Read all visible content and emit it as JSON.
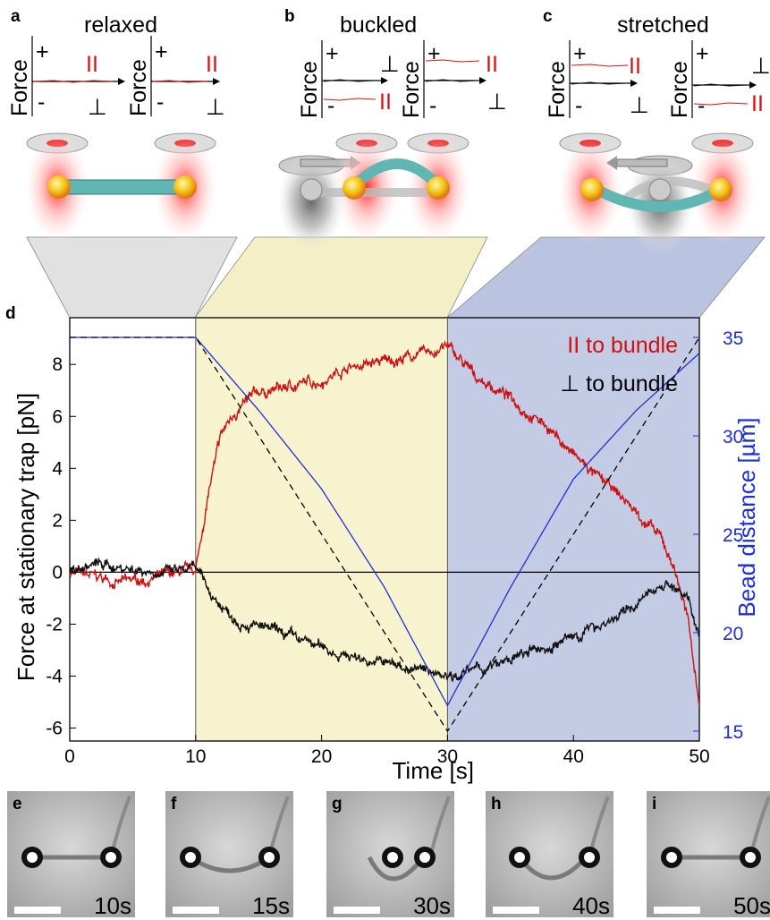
{
  "panels": {
    "a": {
      "letter": "a",
      "title": "relaxed"
    },
    "b": {
      "letter": "b",
      "title": "buckled"
    },
    "c": {
      "letter": "c",
      "title": "stretched"
    },
    "d": {
      "letter": "d"
    }
  },
  "force_labels": {
    "force": "Force",
    "plus": "+",
    "minus": "-",
    "parallel": "II",
    "perp": "⊥"
  },
  "chart_data": {
    "type": "line",
    "xlabel": "Time [s]",
    "ylabel": "Force at stationary trap [pN]",
    "ylabel_right": "Bead distance [µm]",
    "xlim": [
      0,
      50
    ],
    "ylim": [
      -6.5,
      9.8
    ],
    "ylim_right": [
      14.5,
      36
    ],
    "xticks": [
      0,
      10,
      20,
      30,
      40,
      50
    ],
    "yticks": [
      -6,
      -4,
      -2,
      0,
      2,
      4,
      6,
      8
    ],
    "yticks_right": [
      15,
      20,
      25,
      30,
      35
    ],
    "phases": [
      {
        "x0": 10,
        "x1": 30,
        "color": "#f7f3cf"
      },
      {
        "x0": 30,
        "x1": 50,
        "color": "#c3cbe5"
      }
    ],
    "series": [
      {
        "name": "II to bundle",
        "color": "#cc1111",
        "axis": "left",
        "x": [
          0,
          2,
          4,
          6,
          8,
          10,
          11,
          12,
          13,
          14,
          15,
          17,
          20,
          22,
          25,
          27,
          29,
          30,
          32,
          35,
          38,
          40,
          42,
          44,
          46,
          47,
          48,
          49,
          50
        ],
        "y": [
          0,
          -0.2,
          -0.4,
          -0.3,
          -0.1,
          0,
          3.0,
          5.2,
          6.1,
          6.5,
          6.9,
          7.1,
          7.4,
          7.9,
          8.1,
          8.3,
          8.5,
          8.7,
          7.6,
          6.7,
          5.6,
          4.5,
          3.6,
          2.8,
          1.8,
          1.2,
          0.2,
          -1.6,
          -5.0
        ]
      },
      {
        "name": "⊥ to bundle",
        "color": "#111111",
        "axis": "left",
        "x": [
          0,
          2,
          4,
          6,
          8,
          10,
          11,
          12,
          13,
          15,
          18,
          20,
          22,
          25,
          28,
          30,
          32,
          34,
          36,
          38,
          40,
          42,
          44,
          46,
          47,
          48,
          49,
          50
        ],
        "y": [
          0,
          0.3,
          0.2,
          0.1,
          0.0,
          0.1,
          -0.7,
          -1.3,
          -1.7,
          -2.1,
          -2.6,
          -2.9,
          -3.2,
          -3.5,
          -3.8,
          -3.9,
          -3.8,
          -3.6,
          -3.2,
          -2.9,
          -2.5,
          -2.0,
          -1.6,
          -0.9,
          -0.4,
          -0.5,
          -1.1,
          -2.3
        ]
      },
      {
        "name": "",
        "color": "#1f2fd6",
        "axis": "right",
        "x": [
          0,
          10,
          15,
          20,
          25,
          30,
          35,
          40,
          45,
          50
        ],
        "y": [
          35,
          35,
          31.3,
          27.3,
          22.3,
          16.3,
          22.3,
          27.8,
          31.3,
          34.2
        ]
      },
      {
        "name": "",
        "color": "#000000",
        "axis": "right",
        "dashed": true,
        "x": [
          0,
          10,
          30,
          50
        ],
        "y": [
          35,
          35,
          15,
          35
        ]
      }
    ],
    "zero_line": 0,
    "legend": [
      {
        "text": "II to bundle",
        "color": "#cc1111"
      },
      {
        "text": "⊥ to bundle",
        "color": "#000000"
      }
    ]
  },
  "micrographs": [
    {
      "letter": "e",
      "time": "10s"
    },
    {
      "letter": "f",
      "time": "15s"
    },
    {
      "letter": "g",
      "time": "30s"
    },
    {
      "letter": "h",
      "time": "40s"
    },
    {
      "letter": "i",
      "time": "50s"
    }
  ]
}
